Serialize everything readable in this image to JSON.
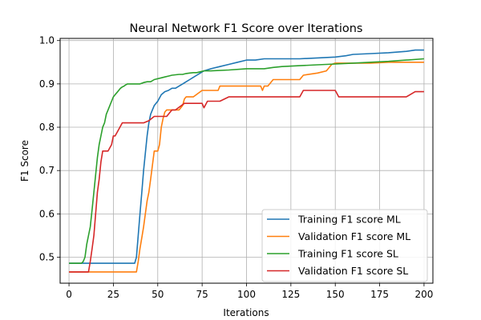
{
  "chart_data": {
    "type": "line",
    "title": "Neural Network F1 Score over Iterations",
    "xlabel": "Iterations",
    "ylabel": "F1 Score",
    "xlim": [
      -5,
      205
    ],
    "ylim": [
      0.44,
      1.005
    ],
    "xticks": [
      0,
      25,
      50,
      75,
      100,
      125,
      150,
      175,
      200
    ],
    "yticks": [
      0.5,
      0.6,
      0.7,
      0.8,
      0.9,
      1.0
    ],
    "xtick_labels": [
      "0",
      "25",
      "50",
      "75",
      "100",
      "125",
      "150",
      "175",
      "200"
    ],
    "ytick_labels": [
      "0.5",
      "0.6",
      "0.7",
      "0.8",
      "0.9",
      "1.0"
    ],
    "grid": true,
    "legend_position": "lower-right",
    "series": [
      {
        "name": "Training F1 score ML",
        "color": "#1f77b4",
        "x": [
          0,
          37,
          38,
          39,
          40,
          41,
          42,
          43,
          44,
          45,
          46,
          47,
          48,
          49,
          50,
          52,
          54,
          56,
          58,
          60,
          62,
          64,
          66,
          68,
          70,
          72,
          74,
          76,
          80,
          85,
          90,
          95,
          100,
          105,
          110,
          115,
          120,
          130,
          140,
          150,
          156,
          160,
          170,
          180,
          190,
          195,
          200
        ],
        "y": [
          0.486,
          0.486,
          0.5,
          0.55,
          0.6,
          0.65,
          0.7,
          0.74,
          0.78,
          0.81,
          0.83,
          0.84,
          0.85,
          0.855,
          0.86,
          0.875,
          0.882,
          0.885,
          0.89,
          0.89,
          0.895,
          0.9,
          0.905,
          0.91,
          0.915,
          0.92,
          0.925,
          0.93,
          0.935,
          0.94,
          0.945,
          0.95,
          0.955,
          0.955,
          0.958,
          0.958,
          0.958,
          0.958,
          0.96,
          0.962,
          0.965,
          0.968,
          0.97,
          0.972,
          0.975,
          0.978,
          0.978
        ]
      },
      {
        "name": "Validation F1 score ML",
        "color": "#ff7f0e",
        "x": [
          0,
          38,
          39,
          40,
          41,
          42,
          43,
          44,
          45,
          46,
          48,
          50,
          51,
          52,
          53,
          54,
          55,
          56,
          58,
          60,
          62,
          64,
          65,
          66,
          70,
          75,
          80,
          84,
          85,
          90,
          100,
          108,
          109,
          110,
          112,
          114,
          115,
          120,
          125,
          130,
          132,
          140,
          145,
          148,
          150,
          155,
          160,
          170,
          180,
          190,
          200
        ],
        "y": [
          0.466,
          0.466,
          0.49,
          0.52,
          0.545,
          0.57,
          0.6,
          0.63,
          0.65,
          0.68,
          0.745,
          0.745,
          0.76,
          0.8,
          0.82,
          0.835,
          0.84,
          0.84,
          0.84,
          0.84,
          0.84,
          0.85,
          0.865,
          0.87,
          0.87,
          0.885,
          0.885,
          0.885,
          0.895,
          0.895,
          0.895,
          0.895,
          0.885,
          0.895,
          0.895,
          0.905,
          0.91,
          0.91,
          0.91,
          0.91,
          0.92,
          0.925,
          0.93,
          0.945,
          0.948,
          0.948,
          0.948,
          0.948,
          0.95,
          0.95,
          0.95
        ]
      },
      {
        "name": "Training F1 score SL",
        "color": "#2ca02c",
        "x": [
          0,
          7,
          8,
          9,
          10,
          11,
          12,
          13,
          14,
          15,
          16,
          17,
          18,
          19,
          20,
          21,
          22,
          23,
          24,
          25,
          26,
          27,
          28,
          29,
          30,
          31,
          32,
          33,
          34,
          35,
          36,
          38,
          40,
          42,
          44,
          46,
          48,
          50,
          52,
          54,
          56,
          58,
          60,
          62,
          64,
          66,
          68,
          70,
          72,
          74,
          76,
          80,
          90,
          100,
          110,
          115,
          120,
          130,
          140,
          150,
          160,
          170,
          180,
          190,
          200
        ],
        "y": [
          0.486,
          0.486,
          0.49,
          0.5,
          0.53,
          0.55,
          0.57,
          0.61,
          0.65,
          0.69,
          0.73,
          0.76,
          0.78,
          0.8,
          0.81,
          0.83,
          0.84,
          0.85,
          0.86,
          0.87,
          0.875,
          0.88,
          0.885,
          0.89,
          0.893,
          0.895,
          0.898,
          0.9,
          0.9,
          0.9,
          0.9,
          0.9,
          0.9,
          0.903,
          0.905,
          0.905,
          0.91,
          0.912,
          0.914,
          0.916,
          0.918,
          0.92,
          0.921,
          0.922,
          0.922,
          0.924,
          0.925,
          0.926,
          0.926,
          0.928,
          0.93,
          0.93,
          0.932,
          0.935,
          0.935,
          0.938,
          0.94,
          0.942,
          0.944,
          0.946,
          0.948,
          0.95,
          0.952,
          0.955,
          0.958
        ]
      },
      {
        "name": "Validation F1 score SL",
        "color": "#d62728",
        "x": [
          0,
          11,
          12,
          13,
          14,
          15,
          16,
          17,
          18,
          19,
          20,
          22,
          24,
          25,
          26,
          28,
          30,
          35,
          40,
          42,
          45,
          48,
          50,
          52,
          55,
          58,
          60,
          65,
          70,
          75,
          76,
          78,
          80,
          85,
          90,
          100,
          120,
          130,
          132,
          140,
          150,
          152,
          160,
          170,
          180,
          190,
          195,
          200
        ],
        "y": [
          0.466,
          0.466,
          0.49,
          0.52,
          0.55,
          0.6,
          0.65,
          0.68,
          0.72,
          0.745,
          0.745,
          0.745,
          0.76,
          0.78,
          0.78,
          0.795,
          0.81,
          0.81,
          0.81,
          0.81,
          0.815,
          0.825,
          0.825,
          0.825,
          0.825,
          0.84,
          0.84,
          0.855,
          0.855,
          0.855,
          0.845,
          0.86,
          0.86,
          0.86,
          0.87,
          0.87,
          0.87,
          0.87,
          0.885,
          0.885,
          0.885,
          0.87,
          0.87,
          0.87,
          0.87,
          0.87,
          0.882,
          0.882
        ]
      }
    ]
  }
}
